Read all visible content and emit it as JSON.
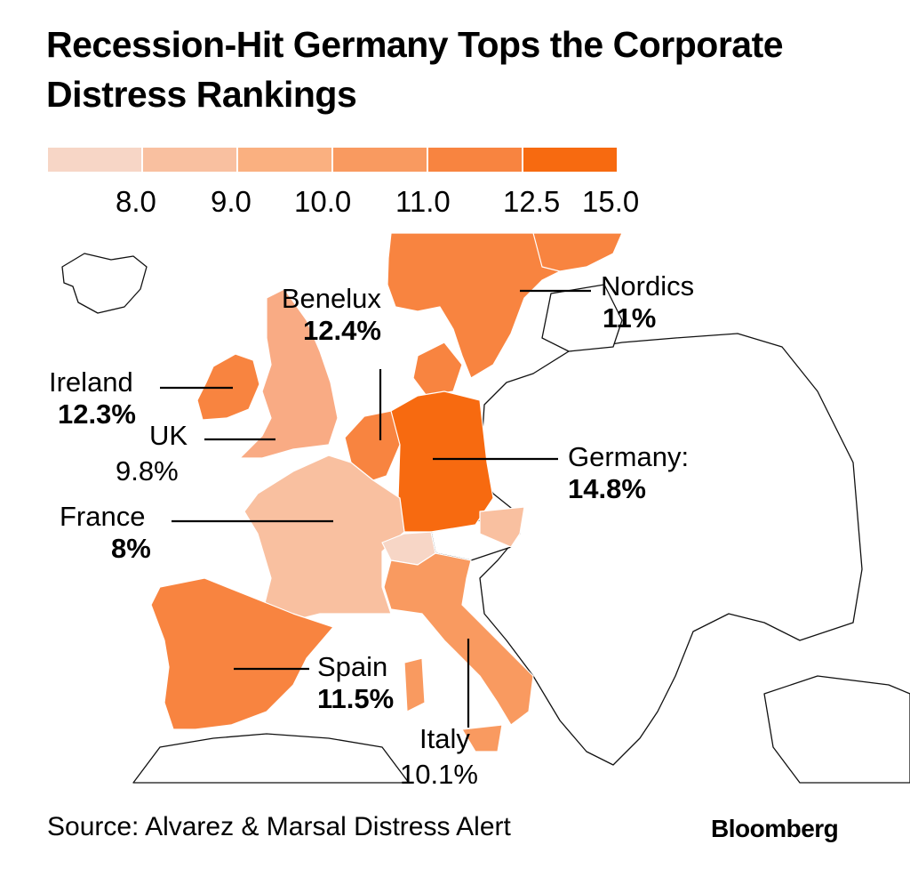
{
  "title": "Recession-Hit Germany Tops the Corporate Distress Rankings",
  "legend": {
    "colors": [
      "#f7d6c6",
      "#f9c0a0",
      "#fab080",
      "#f99a60",
      "#f88440",
      "#f76a10"
    ],
    "ticks": [
      "8.0",
      "9.0",
      "10.0",
      "11.0",
      "12.5",
      "15.0"
    ]
  },
  "regions": [
    {
      "name": "Nordics",
      "value": "11%",
      "color": "#f88440"
    },
    {
      "name": "Benelux",
      "value": "12.4%",
      "color": "#f88440"
    },
    {
      "name": "Ireland",
      "value": "12.3%",
      "color": "#f88440"
    },
    {
      "name": "UK",
      "value": "9.8%",
      "color": "#f9ab84"
    },
    {
      "name": "Germany:",
      "value": "14.8%",
      "color": "#f76a10"
    },
    {
      "name": "France",
      "value": "8%",
      "color": "#f9c0a0"
    },
    {
      "name": "Spain",
      "value": "11.5%",
      "color": "#f88440"
    },
    {
      "name": "Italy",
      "value": "10.1%",
      "color": "#f99a60"
    }
  ],
  "source": "Source: Alvarez & Marsal Distress Alert",
  "brand": "Bloomberg"
}
